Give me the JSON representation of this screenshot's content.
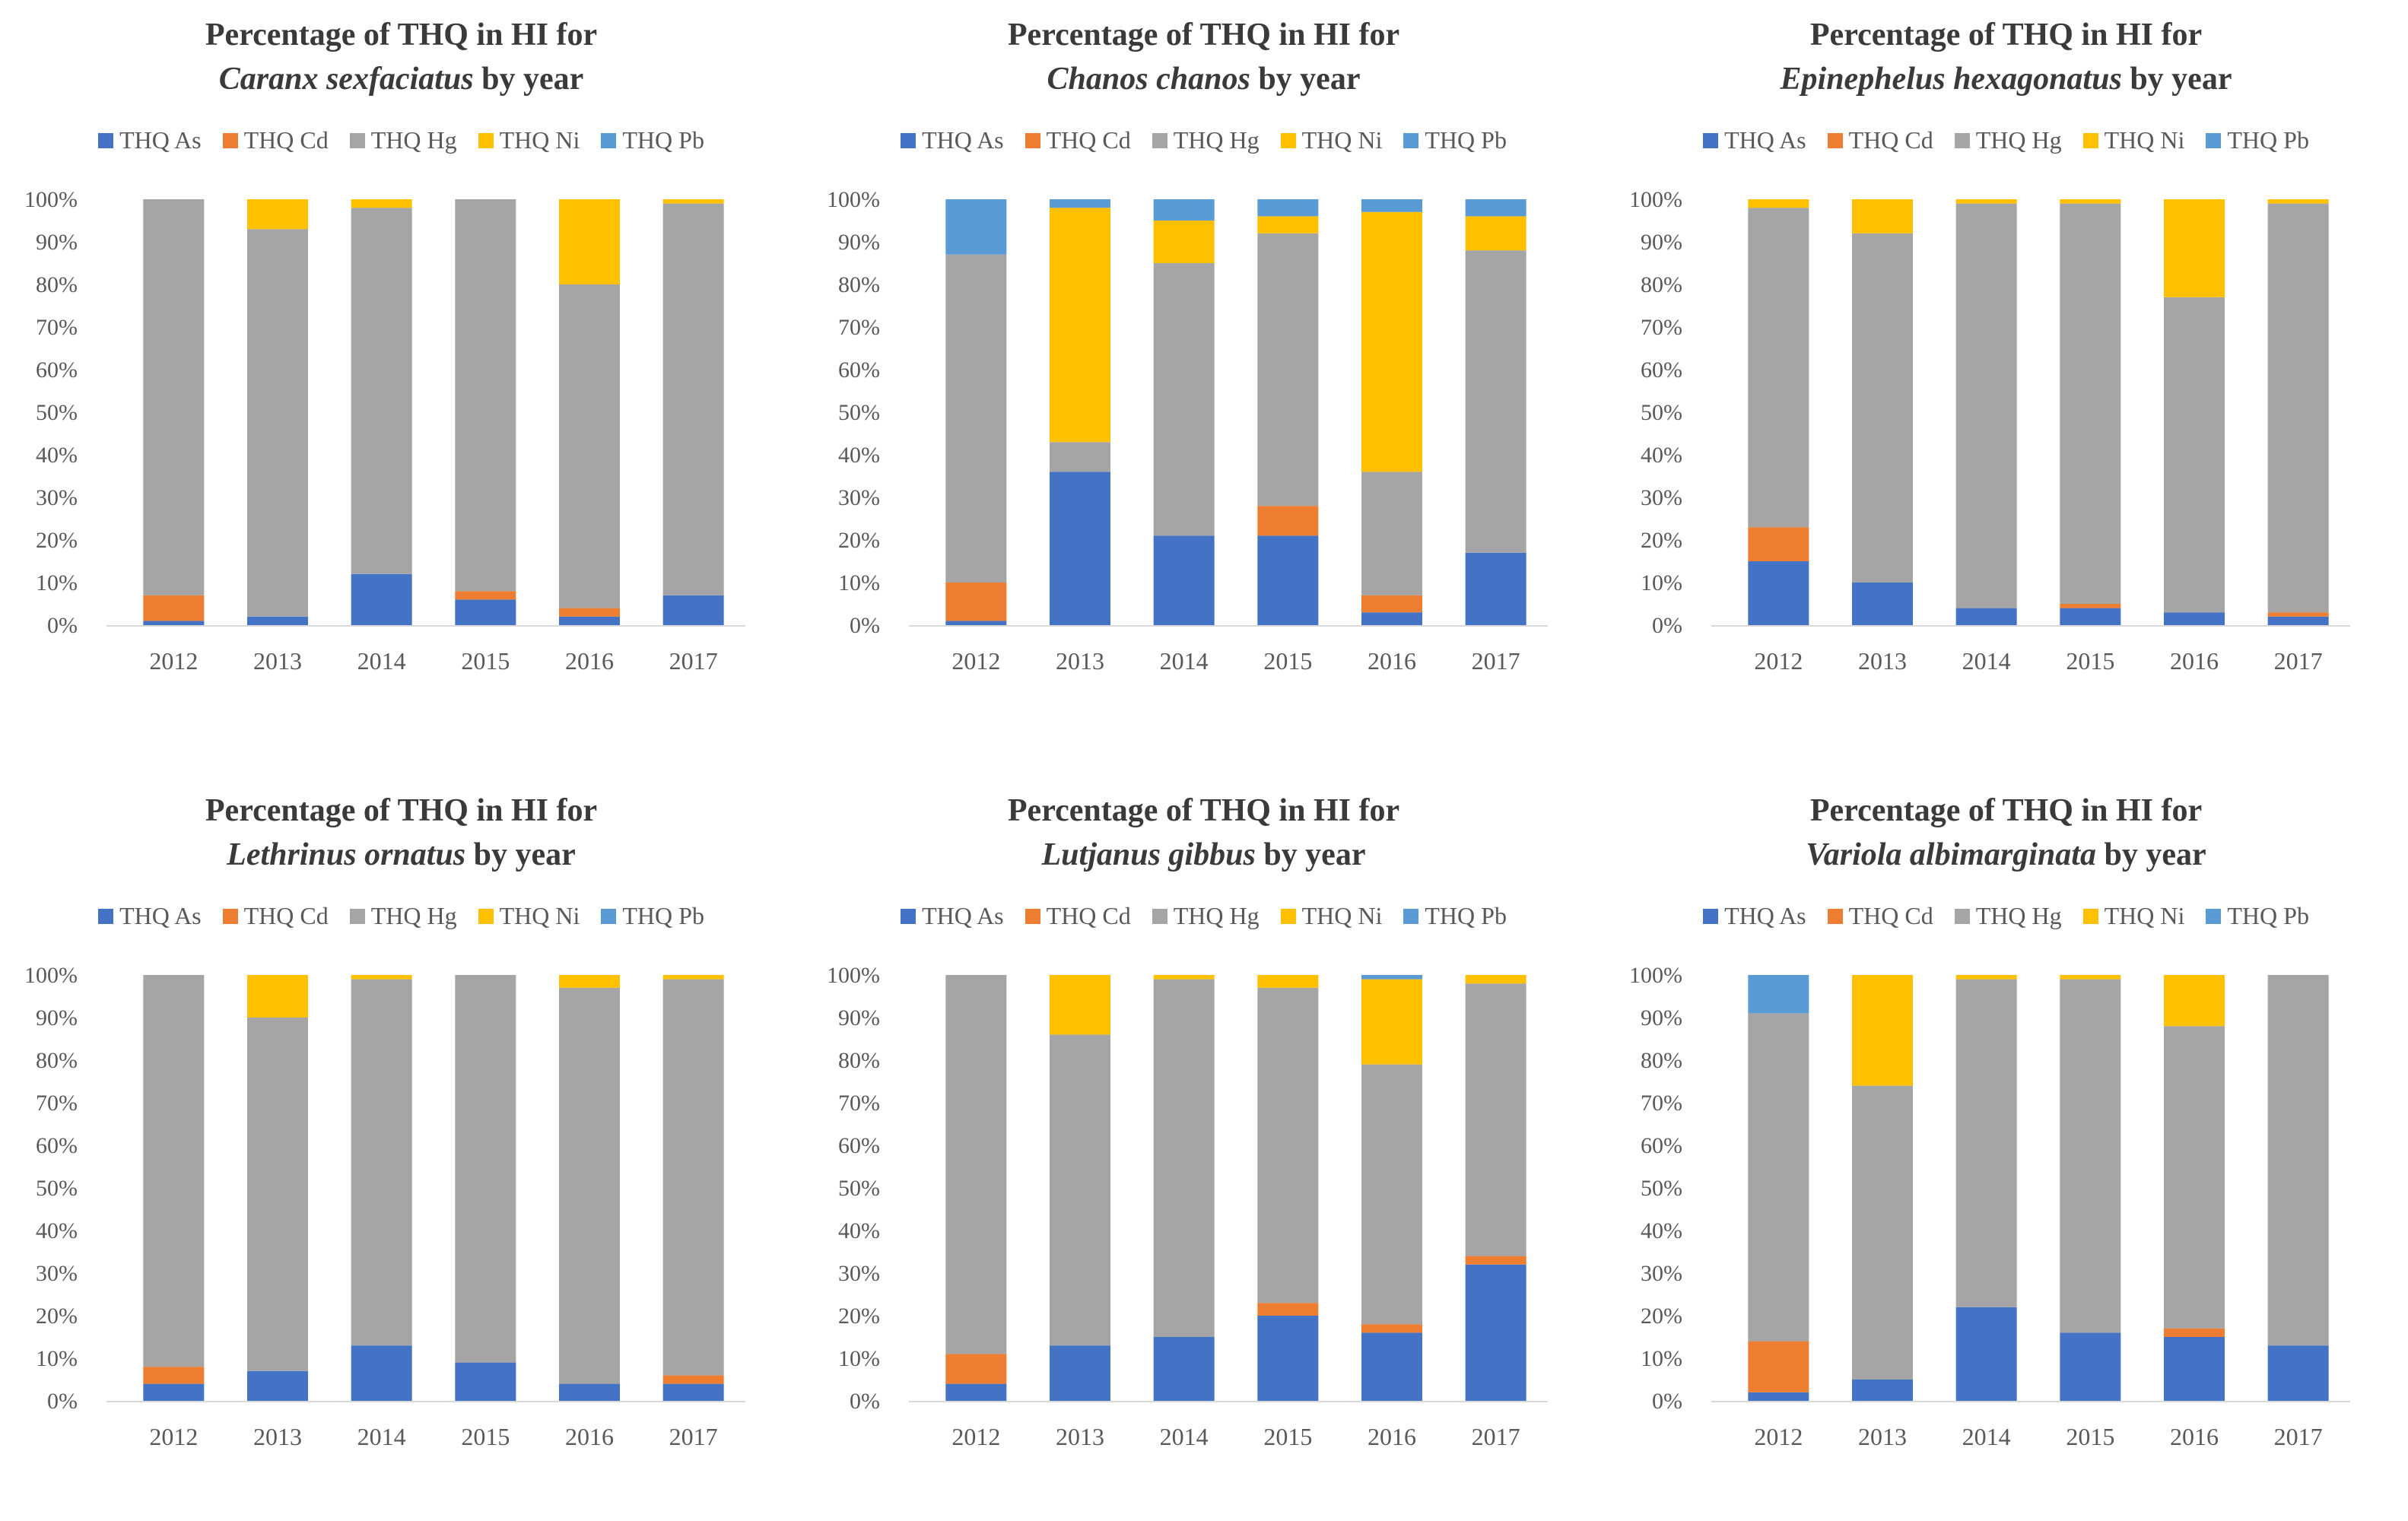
{
  "colors": {
    "THQ As": "#4472C4",
    "THQ Cd": "#ED7D31",
    "THQ Hg": "#A5A5A5",
    "THQ Ni": "#FFC000",
    "THQ Pb": "#5B9BD5"
  },
  "chart_data": [
    {
      "type": "bar",
      "stacked": "percent",
      "title_prefix": "Percentage of THQ in HI for",
      "species": "Caranx sexfaciatus",
      "title_suffix": " by year",
      "categories": [
        "2012",
        "2013",
        "2014",
        "2015",
        "2016",
        "2017"
      ],
      "yticks": [
        "0%",
        "10%",
        "20%",
        "30%",
        "40%",
        "50%",
        "60%",
        "70%",
        "80%",
        "90%",
        "100%"
      ],
      "ylim": [
        0,
        100
      ],
      "series": [
        {
          "name": "THQ As",
          "values": [
            1,
            2,
            12,
            6,
            2,
            7
          ]
        },
        {
          "name": "THQ Cd",
          "values": [
            6,
            0,
            0,
            2,
            2,
            0
          ]
        },
        {
          "name": "THQ Hg",
          "values": [
            93,
            91,
            86,
            92,
            76,
            92
          ]
        },
        {
          "name": "THQ Ni",
          "values": [
            0,
            7,
            2,
            0,
            20,
            1
          ]
        },
        {
          "name": "THQ Pb",
          "values": [
            0,
            0,
            0,
            0,
            0,
            0
          ]
        }
      ]
    },
    {
      "type": "bar",
      "stacked": "percent",
      "title_prefix": "Percentage of THQ in HI for",
      "species": "Chanos chanos",
      "title_suffix": " by year",
      "categories": [
        "2012",
        "2013",
        "2014",
        "2015",
        "2016",
        "2017"
      ],
      "yticks": [
        "0%",
        "10%",
        "20%",
        "30%",
        "40%",
        "50%",
        "60%",
        "70%",
        "80%",
        "90%",
        "100%"
      ],
      "ylim": [
        0,
        100
      ],
      "series": [
        {
          "name": "THQ As",
          "values": [
            1,
            36,
            21,
            21,
            3,
            17
          ]
        },
        {
          "name": "THQ Cd",
          "values": [
            9,
            0,
            0,
            7,
            4,
            0
          ]
        },
        {
          "name": "THQ Hg",
          "values": [
            77,
            7,
            64,
            64,
            29,
            71
          ]
        },
        {
          "name": "THQ Ni",
          "values": [
            0,
            55,
            10,
            4,
            61,
            8
          ]
        },
        {
          "name": "THQ Pb",
          "values": [
            13,
            2,
            5,
            4,
            3,
            4
          ]
        }
      ]
    },
    {
      "type": "bar",
      "stacked": "percent",
      "title_prefix": "Percentage of THQ in HI for",
      "species": "Epinephelus hexagonatus",
      "title_suffix": " by year",
      "categories": [
        "2012",
        "2013",
        "2014",
        "2015",
        "2016",
        "2017"
      ],
      "yticks": [
        "0%",
        "10%",
        "20%",
        "30%",
        "40%",
        "50%",
        "60%",
        "70%",
        "80%",
        "90%",
        "100%"
      ],
      "ylim": [
        0,
        100
      ],
      "series": [
        {
          "name": "THQ As",
          "values": [
            15,
            10,
            4,
            4,
            3,
            2
          ]
        },
        {
          "name": "THQ Cd",
          "values": [
            8,
            0,
            0,
            1,
            0,
            1
          ]
        },
        {
          "name": "THQ Hg",
          "values": [
            75,
            82,
            95,
            94,
            74,
            96
          ]
        },
        {
          "name": "THQ Ni",
          "values": [
            2,
            8,
            1,
            1,
            23,
            1
          ]
        },
        {
          "name": "THQ Pb",
          "values": [
            0,
            0,
            0,
            0,
            0,
            0
          ]
        }
      ]
    },
    {
      "type": "bar",
      "stacked": "percent",
      "title_prefix": "Percentage of THQ in HI for",
      "species": "Lethrinus ornatus",
      "title_suffix": " by year",
      "categories": [
        "2012",
        "2013",
        "2014",
        "2015",
        "2016",
        "2017"
      ],
      "yticks": [
        "0%",
        "10%",
        "20%",
        "30%",
        "40%",
        "50%",
        "60%",
        "70%",
        "80%",
        "90%",
        "100%"
      ],
      "ylim": [
        0,
        100
      ],
      "series": [
        {
          "name": "THQ As",
          "values": [
            4,
            7,
            13,
            9,
            4,
            4
          ]
        },
        {
          "name": "THQ Cd",
          "values": [
            4,
            0,
            0,
            0,
            0,
            2
          ]
        },
        {
          "name": "THQ Hg",
          "values": [
            92,
            83,
            86,
            91,
            93,
            93
          ]
        },
        {
          "name": "THQ Ni",
          "values": [
            0,
            10,
            1,
            0,
            3,
            1
          ]
        },
        {
          "name": "THQ Pb",
          "values": [
            0,
            0,
            0,
            0,
            0,
            0
          ]
        }
      ]
    },
    {
      "type": "bar",
      "stacked": "percent",
      "title_prefix": "Percentage of THQ in HI for",
      "species": "Lutjanus gibbus",
      "title_suffix": " by year",
      "categories": [
        "2012",
        "2013",
        "2014",
        "2015",
        "2016",
        "2017"
      ],
      "yticks": [
        "0%",
        "10%",
        "20%",
        "30%",
        "40%",
        "50%",
        "60%",
        "70%",
        "80%",
        "90%",
        "100%"
      ],
      "ylim": [
        0,
        100
      ],
      "series": [
        {
          "name": "THQ As",
          "values": [
            4,
            13,
            15,
            20,
            16,
            32
          ]
        },
        {
          "name": "THQ Cd",
          "values": [
            7,
            0,
            0,
            3,
            2,
            2
          ]
        },
        {
          "name": "THQ Hg",
          "values": [
            89,
            73,
            84,
            74,
            61,
            64
          ]
        },
        {
          "name": "THQ Ni",
          "values": [
            0,
            14,
            1,
            3,
            20,
            2
          ]
        },
        {
          "name": "THQ Pb",
          "values": [
            0,
            0,
            0,
            0,
            1,
            0
          ]
        }
      ]
    },
    {
      "type": "bar",
      "stacked": "percent",
      "title_prefix": "Percentage of THQ in HI for",
      "species": "Variola albimarginata",
      "title_suffix": " by year",
      "categories": [
        "2012",
        "2013",
        "2014",
        "2015",
        "2016",
        "2017"
      ],
      "yticks": [
        "0%",
        "10%",
        "20%",
        "30%",
        "40%",
        "50%",
        "60%",
        "70%",
        "80%",
        "90%",
        "100%"
      ],
      "ylim": [
        0,
        100
      ],
      "series": [
        {
          "name": "THQ As",
          "values": [
            2,
            5,
            22,
            16,
            15,
            13
          ]
        },
        {
          "name": "THQ Cd",
          "values": [
            12,
            0,
            0,
            0,
            2,
            0
          ]
        },
        {
          "name": "THQ Hg",
          "values": [
            77,
            69,
            77,
            83,
            71,
            87
          ]
        },
        {
          "name": "THQ Ni",
          "values": [
            0,
            26,
            1,
            1,
            12,
            0
          ]
        },
        {
          "name": "THQ Pb",
          "values": [
            9,
            0,
            0,
            0,
            0,
            0
          ]
        }
      ]
    }
  ]
}
